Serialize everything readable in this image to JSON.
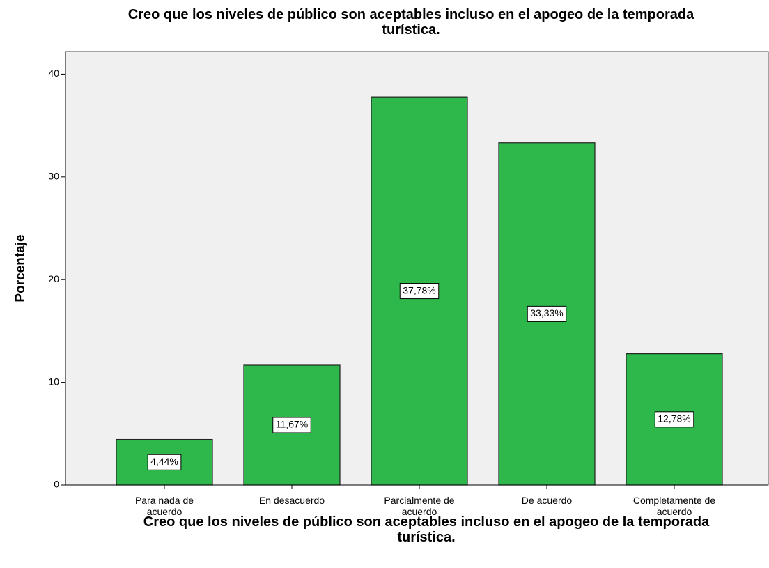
{
  "chart_data": {
    "type": "bar",
    "title": "Creo que los niveles de público son aceptables incluso en el apogeo de la temporada turística.",
    "x_label": "Creo que los niveles de público son aceptables incluso en el apogeo de la temporada turística.",
    "y_label": "Porcentaje",
    "categories": [
      "Para nada de acuerdo",
      "En desacuerdo",
      "Parcialmente de acuerdo",
      "De acuerdo",
      "Completamente de acuerdo"
    ],
    "values": [
      4.44,
      11.67,
      37.78,
      33.33,
      12.78
    ],
    "value_labels": [
      "4,44%",
      "11,67%",
      "37,78%",
      "33,33%",
      "12,78%"
    ],
    "color": "#2eb84b",
    "ylim": [
      0,
      42.2
    ],
    "yticks": [
      0,
      10,
      20,
      30,
      40
    ],
    "grid": false
  }
}
